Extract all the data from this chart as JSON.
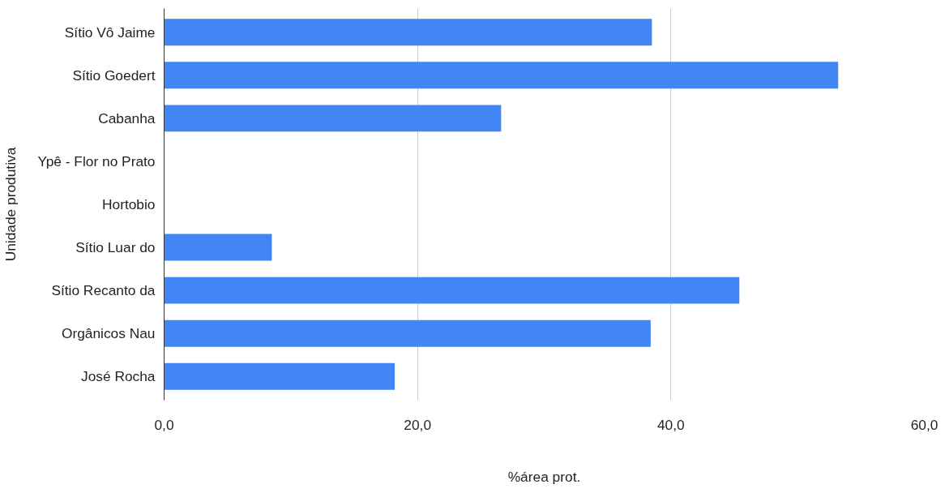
{
  "chart_data": {
    "type": "bar",
    "orientation": "horizontal",
    "xlabel": "%área prot.",
    "ylabel": "Unidade produtiva",
    "categories": [
      "Sítio Vô Jaime",
      "Sítio Goedert",
      "Cabanha",
      "Ypê - Flor no Prato",
      "Hortobio",
      "Sítio Luar do",
      "Sítio Recanto da",
      "Orgânicos Nau",
      "José Rocha"
    ],
    "values": [
      38.5,
      53.2,
      26.6,
      0,
      0,
      8.5,
      45.4,
      38.4,
      18.2
    ],
    "color": "#4285f4",
    "xlim": [
      0,
      60
    ],
    "xticks": [
      {
        "value": 0,
        "label": "0,0"
      },
      {
        "value": 20,
        "label": "20,0"
      },
      {
        "value": 40,
        "label": "40,0"
      },
      {
        "value": 60,
        "label": "60,0"
      }
    ],
    "grid": "x"
  }
}
